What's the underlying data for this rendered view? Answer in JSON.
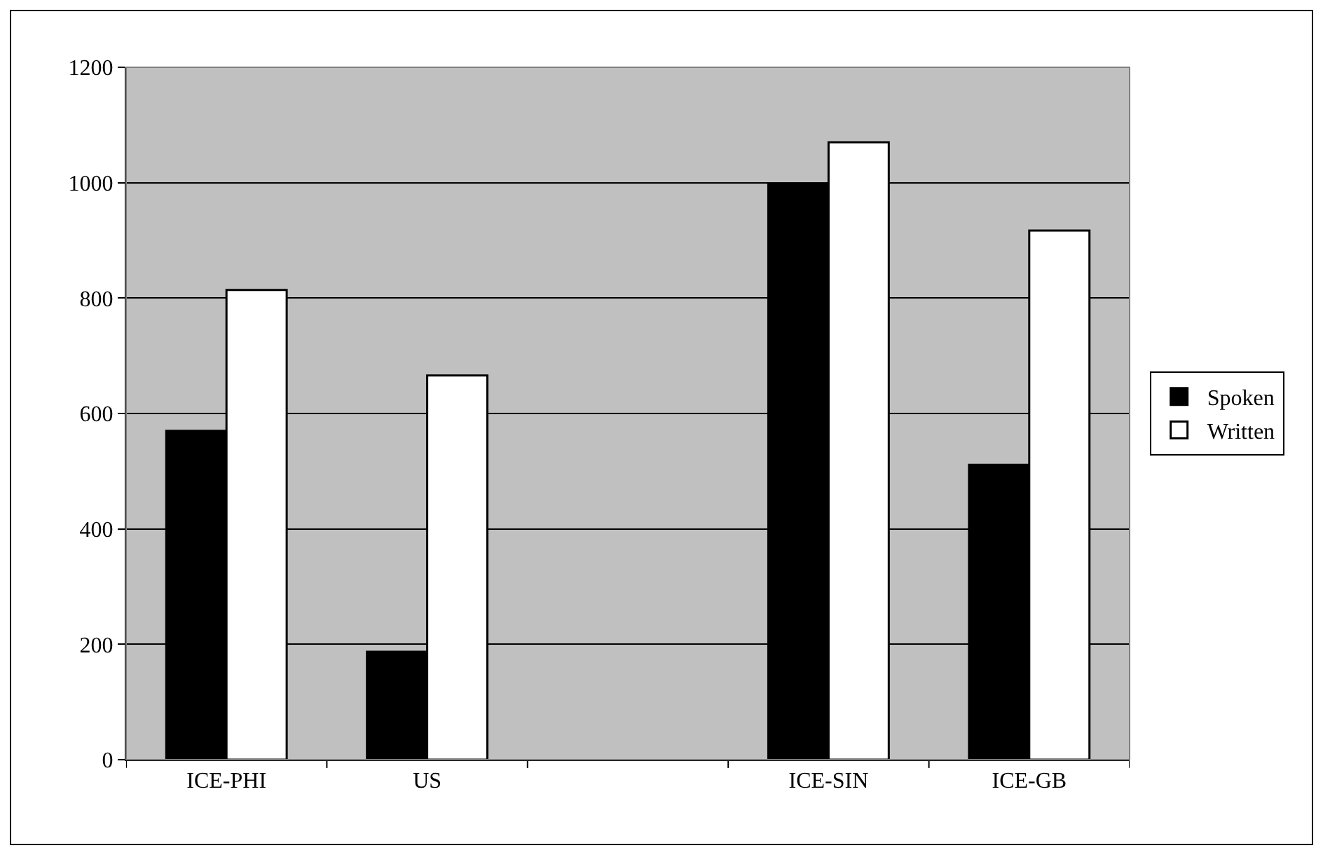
{
  "chart_data": {
    "type": "bar",
    "categories": [
      "ICE-PHI",
      "US",
      null,
      "ICE-SIN",
      "ICE-GB"
    ],
    "series": [
      {
        "name": "Spoken",
        "color": "#000000",
        "values": [
          570,
          187,
          null,
          997,
          511
        ]
      },
      {
        "name": "Written",
        "color": "#ffffff",
        "values": [
          814,
          666,
          null,
          1070,
          917
        ]
      }
    ],
    "ylim": [
      0,
      1200
    ],
    "yticks": [
      0,
      200,
      400,
      600,
      800,
      1000,
      1200
    ],
    "grid": "y",
    "legend": "right"
  }
}
